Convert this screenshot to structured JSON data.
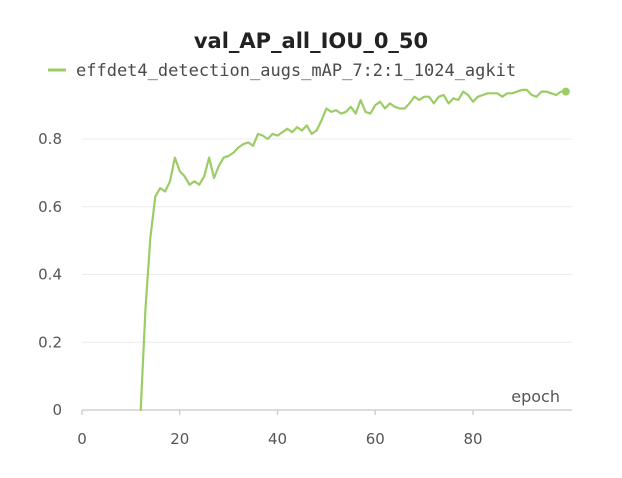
{
  "chart_data": {
    "type": "line",
    "title": "val_AP_all_IOU_0_50",
    "xlabel": "epoch",
    "ylabel": "",
    "xlim": [
      0,
      99
    ],
    "ylim": [
      0,
      1.0
    ],
    "xticks": [
      0,
      20,
      40,
      60,
      80
    ],
    "yticks": [
      0,
      0.2,
      0.4,
      0.6,
      0.8
    ],
    "xtick_labels": [
      "0",
      "20",
      "40",
      "60",
      "80"
    ],
    "ytick_labels": [
      "0",
      "0.2",
      "0.4",
      "0.6",
      "0.8"
    ],
    "grid": true,
    "legend": "top",
    "colors": {
      "series": "#9ccc65"
    },
    "series": [
      {
        "name": "effdet4_detection_augs_mAP_7:2:1_1024_agkit",
        "x": [
          12,
          13,
          14,
          15,
          16,
          17,
          18,
          19,
          20,
          21,
          22,
          23,
          24,
          25,
          26,
          27,
          28,
          29,
          30,
          31,
          32,
          33,
          34,
          35,
          36,
          37,
          38,
          39,
          40,
          41,
          42,
          43,
          44,
          45,
          46,
          47,
          48,
          49,
          50,
          51,
          52,
          53,
          54,
          55,
          56,
          57,
          58,
          59,
          60,
          61,
          62,
          63,
          64,
          65,
          66,
          67,
          68,
          69,
          70,
          71,
          72,
          73,
          74,
          75,
          76,
          77,
          78,
          79,
          80,
          81,
          82,
          83,
          84,
          85,
          86,
          87,
          88,
          89,
          90,
          91,
          92,
          93,
          94,
          95,
          96,
          97,
          98,
          99
        ],
        "y": [
          0.0,
          0.3,
          0.51,
          0.63,
          0.655,
          0.645,
          0.675,
          0.745,
          0.705,
          0.69,
          0.665,
          0.675,
          0.665,
          0.69,
          0.745,
          0.685,
          0.72,
          0.745,
          0.75,
          0.76,
          0.775,
          0.785,
          0.79,
          0.78,
          0.815,
          0.81,
          0.8,
          0.815,
          0.81,
          0.82,
          0.83,
          0.82,
          0.835,
          0.825,
          0.84,
          0.815,
          0.825,
          0.855,
          0.89,
          0.88,
          0.885,
          0.875,
          0.88,
          0.895,
          0.875,
          0.915,
          0.88,
          0.875,
          0.9,
          0.91,
          0.89,
          0.905,
          0.895,
          0.89,
          0.89,
          0.905,
          0.925,
          0.915,
          0.925,
          0.925,
          0.905,
          0.925,
          0.93,
          0.905,
          0.92,
          0.915,
          0.94,
          0.93,
          0.91,
          0.925,
          0.93,
          0.935,
          0.935,
          0.935,
          0.925,
          0.935,
          0.935,
          0.94,
          0.945,
          0.945,
          0.93,
          0.925,
          0.94,
          0.94,
          0.935,
          0.93,
          0.94,
          0.94
        ]
      }
    ]
  }
}
